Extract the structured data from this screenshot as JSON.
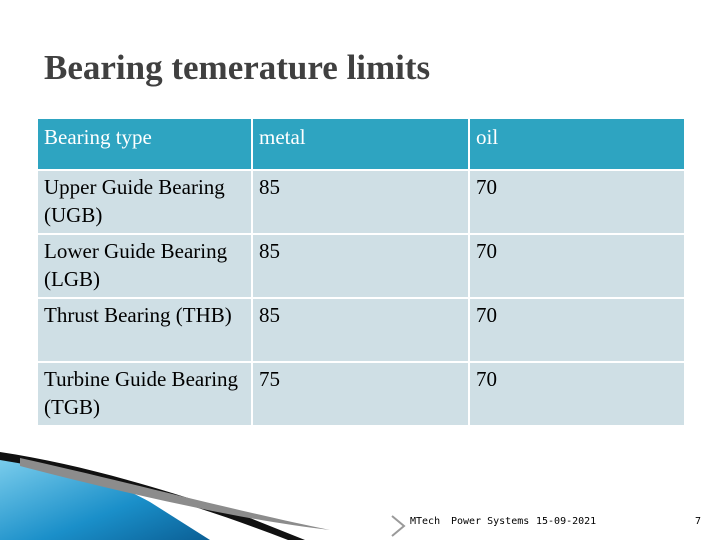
{
  "slide": {
    "title": "Bearing temerature limits",
    "table": {
      "headers": [
        "Bearing type",
        "metal",
        "oil"
      ],
      "rows": [
        [
          "Upper Guide Bearing (UGB)",
          "85",
          "70"
        ],
        [
          "Lower Guide Bearing (LGB)",
          "85",
          "70"
        ],
        [
          "Thrust Bearing (THB)",
          "85",
          "70"
        ],
        [
          "Turbine Guide Bearing (TGB)",
          "75",
          "70"
        ]
      ]
    },
    "footer": {
      "course": "MTech",
      "subject": "Power Systems",
      "date": "15-09-2021",
      "page": "7"
    },
    "colors": {
      "header_fill": "#2ea4c1",
      "row_fill": "#cfdfe5",
      "title": "#404040",
      "accent_blue": "#1a8fc9"
    }
  }
}
